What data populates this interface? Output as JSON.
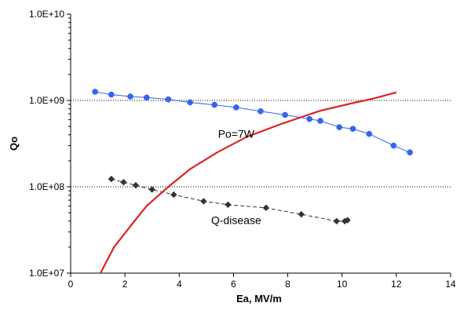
{
  "chart_data": {
    "type": "line",
    "xlabel": "Ea, MV/m",
    "ylabel": "Qo",
    "xlim": [
      0,
      14
    ],
    "ylim": [
      10000000,
      10000000000
    ],
    "yscale": "log",
    "x_ticks": [
      0,
      2,
      4,
      6,
      8,
      10,
      12,
      14
    ],
    "x_tick_labels": [
      "0",
      "2",
      "4",
      "6",
      "8",
      "10",
      "12",
      "14"
    ],
    "y_ticks": [
      10000000,
      100000000,
      1000000000,
      10000000000
    ],
    "y_tick_labels": [
      "1.0E+07",
      "1.0E+08",
      "1.0E+09",
      "1.0E+10"
    ],
    "grid": "horizontal dotted at 1.0E+08 and 1.0E+09",
    "legend": "none",
    "annotations": [
      {
        "text": "Po=7W",
        "x": 6.1,
        "y": 410000000
      },
      {
        "text": "Q-disease",
        "x": 6.1,
        "y": 41000000
      }
    ],
    "series": [
      {
        "marker": "circle",
        "line": "solid",
        "color": "#3366ee",
        "points": [
          [
            0.9,
            1260000000
          ],
          [
            1.5,
            1170000000
          ],
          [
            2.2,
            1110000000
          ],
          [
            2.8,
            1080000000
          ],
          [
            3.6,
            1030000000
          ],
          [
            4.4,
            950000000
          ],
          [
            5.3,
            890000000
          ],
          [
            6.1,
            830000000
          ],
          [
            7.0,
            750000000
          ],
          [
            7.9,
            680000000
          ],
          [
            8.8,
            610000000
          ],
          [
            9.2,
            580000000
          ],
          [
            9.9,
            490000000
          ],
          [
            10.4,
            470000000
          ],
          [
            11.0,
            410000000
          ],
          [
            11.9,
            300000000
          ],
          [
            12.5,
            250000000
          ]
        ]
      },
      {
        "marker": "diamond",
        "line": "dashed",
        "color": "#333333",
        "points": [
          [
            1.5,
            123000000
          ],
          [
            1.95,
            113000000
          ],
          [
            2.4,
            104000000
          ],
          [
            3.0,
            93000000
          ],
          [
            3.8,
            81000000
          ],
          [
            4.9,
            68000000
          ],
          [
            5.8,
            62000000
          ],
          [
            7.2,
            57000000
          ],
          [
            8.5,
            48000000
          ],
          [
            9.8,
            40000000
          ],
          [
            10.1,
            40000000
          ],
          [
            10.2,
            41000000
          ]
        ]
      },
      {
        "marker": "none",
        "line": "solid",
        "color": "#dd2222",
        "points": [
          [
            1.1,
            10000000
          ],
          [
            1.6,
            20000000
          ],
          [
            2.2,
            35000000
          ],
          [
            2.8,
            60000000
          ],
          [
            3.6,
            100000000
          ],
          [
            4.4,
            160000000
          ],
          [
            5.4,
            250000000
          ],
          [
            6.5,
            380000000
          ],
          [
            7.8,
            540000000
          ],
          [
            9.2,
            760000000
          ],
          [
            10.5,
            950000000
          ],
          [
            11.2,
            1060000000
          ],
          [
            12.0,
            1240000000
          ]
        ]
      }
    ]
  }
}
